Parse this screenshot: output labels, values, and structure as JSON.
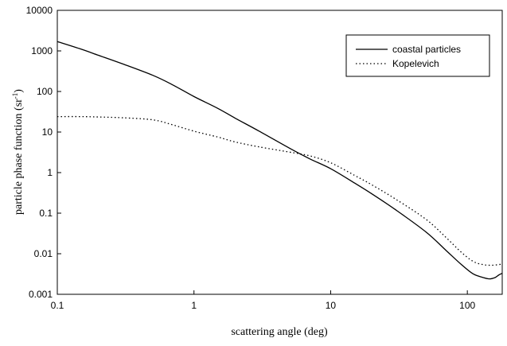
{
  "chart_data": {
    "type": "line",
    "title": "",
    "xlabel": "scattering angle  (deg)",
    "ylabel_main": "particle phase function  (sr",
    "ylabel_sup": "-1",
    "ylabel_close": ")",
    "x_scale": "log",
    "y_scale": "log",
    "xlim": [
      0.1,
      180
    ],
    "ylim": [
      0.001,
      10000
    ],
    "x_ticks": [
      0.1,
      1,
      10,
      100
    ],
    "x_tick_labels": [
      "0.1",
      "1",
      "10",
      "100"
    ],
    "y_ticks": [
      0.001,
      0.01,
      0.1,
      1,
      10,
      100,
      1000,
      10000
    ],
    "y_tick_labels": [
      "0.001",
      "0.01",
      "0.1",
      "1",
      "10",
      "100",
      "1000",
      "10000"
    ],
    "grid": false,
    "legend_position": "top-right",
    "series": [
      {
        "name": "coastal particles",
        "line_style": "solid",
        "color": "#000000",
        "x": [
          0.1,
          0.15,
          0.2,
          0.3,
          0.5,
          0.7,
          1,
          1.5,
          2,
          3,
          5,
          7,
          10,
          15,
          20,
          30,
          50,
          70,
          90,
          110,
          130,
          145,
          160,
          170,
          180
        ],
        "y": [
          1700,
          1100,
          780,
          480,
          250,
          145,
          75,
          38,
          22,
          10.5,
          4.0,
          2.2,
          1.25,
          0.55,
          0.3,
          0.12,
          0.034,
          0.012,
          0.0055,
          0.0032,
          0.0026,
          0.0024,
          0.0026,
          0.003,
          0.0033
        ]
      },
      {
        "name": "Kopelevich",
        "line_style": "dotted",
        "color": "#000000",
        "x": [
          0.1,
          0.15,
          0.2,
          0.3,
          0.5,
          0.7,
          1,
          1.5,
          2,
          3,
          5,
          7,
          10,
          15,
          20,
          30,
          50,
          70,
          90,
          110,
          130,
          150,
          170,
          180
        ],
        "y": [
          24,
          24,
          23.5,
          22.5,
          20,
          15,
          10.5,
          7.5,
          5.7,
          4.3,
          3.2,
          2.6,
          1.75,
          0.85,
          0.5,
          0.22,
          0.07,
          0.025,
          0.011,
          0.0065,
          0.0054,
          0.0052,
          0.0054,
          0.0056
        ]
      }
    ]
  }
}
